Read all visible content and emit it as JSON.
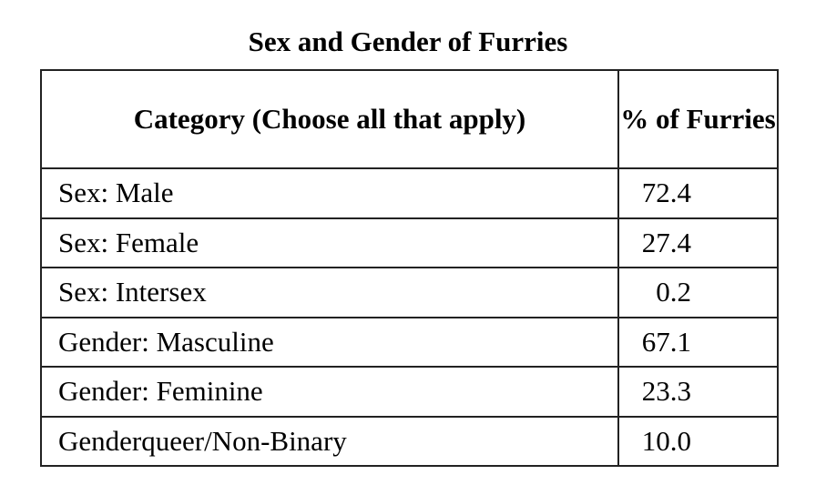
{
  "title": "Sex and Gender of Furries",
  "table": {
    "header": [
      "Category (Choose all that apply)",
      "% of Furries"
    ],
    "rows": [
      [
        "Sex: Male",
        "72.4"
      ],
      [
        "Sex: Female",
        "27.4"
      ],
      [
        "Sex: Intersex",
        "0.2"
      ],
      [
        "Gender: Masculine",
        "67.1"
      ],
      [
        "Gender: Feminine",
        "23.3"
      ],
      [
        "Genderqueer/Non-Binary",
        "10.0"
      ]
    ]
  }
}
